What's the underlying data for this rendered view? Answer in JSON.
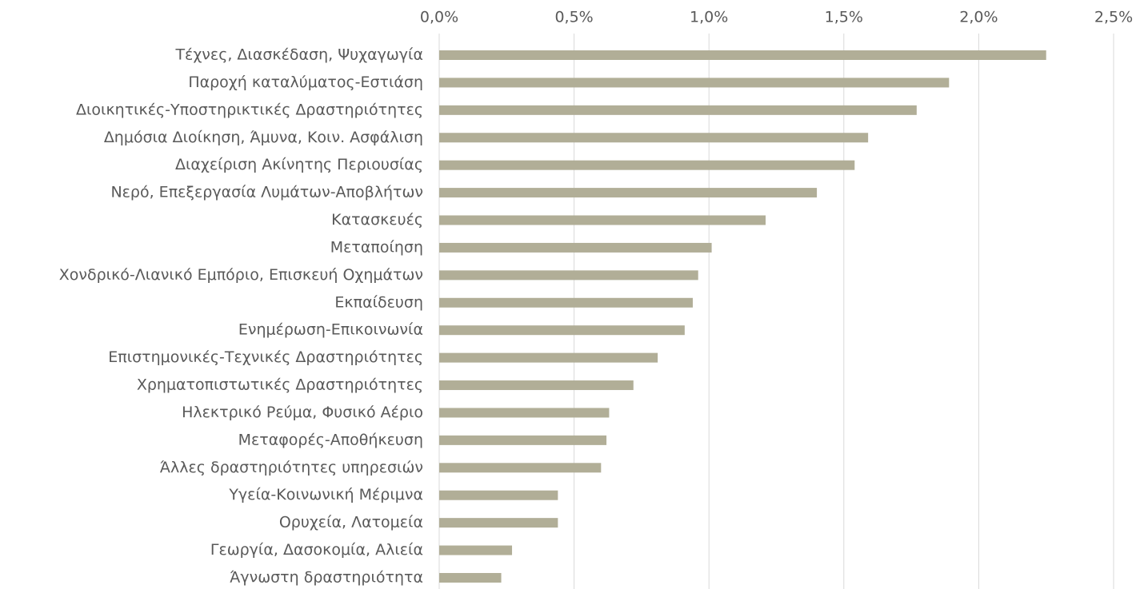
{
  "chart_data": {
    "type": "bar",
    "orientation": "horizontal",
    "categories": [
      "Τέχνες, Διασκέδαση, Ψυχαγωγία",
      "Παροχή καταλύματος-Εστιάση",
      "Διοικητικές-Υποστηρικτικές Δραστηριότητες",
      "Δημόσια Διοίκηση, Άμυνα, Κοιν. Ασφάλιση",
      "Διαχείριση Ακίνητης Περιουσίας",
      "Νερό, Επεξεργασία Λυμάτων-Αποβλήτων",
      "Κατασκευές",
      "Μεταποίηση",
      "Χονδρικό-Λιανικό Εμπόριο, Επισκευή Οχημάτων",
      "Εκπαίδευση",
      "Ενημέρωση-Επικοινωνία",
      "Επιστημονικές-Τεχνικές Δραστηριότητες",
      "Χρηματοπιστωτικές Δραστηριότητες",
      "Ηλεκτρικό Ρεύμα, Φυσικό Αέριο",
      "Μεταφορές-Αποθήκευση",
      "Άλλες δραστηριότητες υπηρεσιών",
      "Υγεία-Κοινωνική Μέριμνα",
      "Ορυχεία, Λατομεία",
      "Γεωργία, Δασοκομία, Αλιεία",
      "Άγνωστη δραστηριότητα"
    ],
    "values": [
      2.25,
      1.89,
      1.77,
      1.59,
      1.54,
      1.4,
      1.21,
      1.01,
      0.96,
      0.94,
      0.91,
      0.81,
      0.72,
      0.63,
      0.62,
      0.6,
      0.44,
      0.44,
      0.27,
      0.23
    ],
    "color": "#b1ae97",
    "xlim": [
      0,
      2.5
    ],
    "xticks": [
      {
        "value": 0,
        "label": "0,0%"
      },
      {
        "value": 0.5,
        "label": "0,5%"
      },
      {
        "value": 1,
        "label": "1,0%"
      },
      {
        "value": 1.5,
        "label": "1,5%"
      },
      {
        "value": 2,
        "label": "2,0%"
      },
      {
        "value": 2.5,
        "label": "2,5%"
      }
    ],
    "grid": true
  }
}
